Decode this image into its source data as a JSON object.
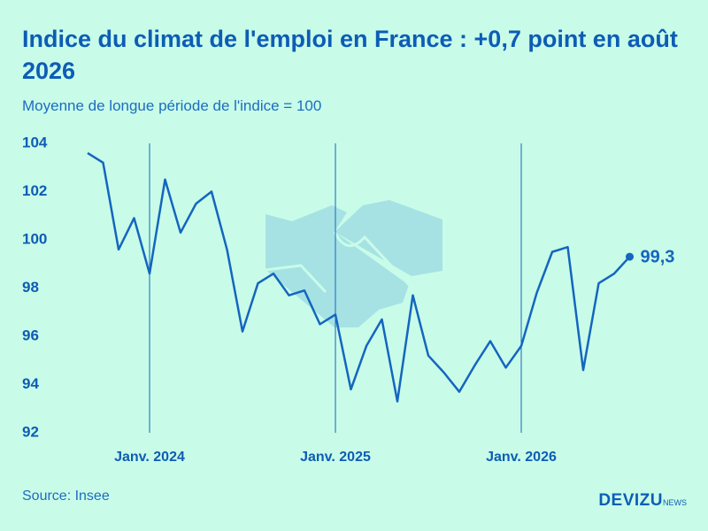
{
  "chart_data": {
    "type": "line",
    "title": "Indice du climat de l'emploi en France : +0,7 point en août 2026",
    "subtitle": "Moyenne de longue période de l'indice = 100",
    "source": "Source: Insee",
    "logo": "DEVIZU",
    "logo_suffix": "NEWS",
    "categories": [
      null,
      null,
      null,
      null,
      "Janv. 2024",
      null,
      null,
      null,
      null,
      null,
      null,
      null,
      null,
      null,
      null,
      null,
      "Janv. 2025",
      null,
      null,
      null,
      null,
      null,
      null,
      null,
      null,
      null,
      null,
      null,
      "Janv. 2026",
      null,
      null,
      null,
      null,
      null,
      null,
      null
    ],
    "series": [
      {
        "name": "Indice du climat de l'emploi",
        "color": "#1565c0",
        "values": [
          103.6,
          103.2,
          99.6,
          100.9,
          98.6,
          102.5,
          100.3,
          101.5,
          102.0,
          99.6,
          96.2,
          98.2,
          98.6,
          97.7,
          97.9,
          96.5,
          96.9,
          93.8,
          95.6,
          96.7,
          93.3,
          97.7,
          95.2,
          94.5,
          93.7,
          94.8,
          95.8,
          94.7,
          95.6,
          97.8,
          99.5,
          99.7,
          94.6,
          98.2,
          98.6,
          99.3
        ],
        "value_labels": [
          null,
          null,
          null,
          null,
          null,
          null,
          null,
          null,
          null,
          null,
          null,
          null,
          null,
          null,
          null,
          null,
          null,
          null,
          null,
          null,
          null,
          null,
          null,
          null,
          null,
          null,
          null,
          null,
          null,
          null,
          null,
          null,
          null,
          null,
          null,
          "99,3"
        ]
      }
    ],
    "ylim": [
      92,
      104
    ],
    "yticks": [
      92,
      94,
      96,
      98,
      100,
      102,
      104
    ],
    "grid": true
  }
}
